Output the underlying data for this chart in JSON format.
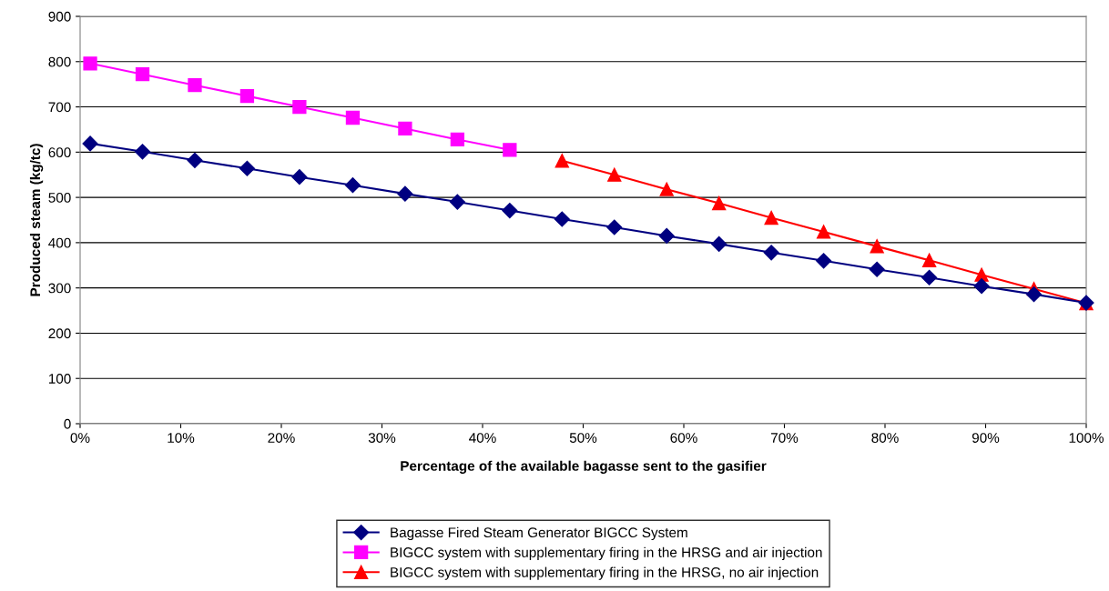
{
  "chart_data": {
    "type": "line",
    "xlabel": "Percentage of the available bagasse sent to the gasifier",
    "ylabel": "Produced steam (kg/tc)",
    "xlim": [
      0,
      100
    ],
    "xticks": [
      {
        "value": 0,
        "label": "0%"
      },
      {
        "value": 10,
        "label": "10%"
      },
      {
        "value": 20,
        "label": "20%"
      },
      {
        "value": 30,
        "label": "30%"
      },
      {
        "value": 40,
        "label": "40%"
      },
      {
        "value": 50,
        "label": "50%"
      },
      {
        "value": 60,
        "label": "60%"
      },
      {
        "value": 70,
        "label": "70%"
      },
      {
        "value": 80,
        "label": "80%"
      },
      {
        "value": 90,
        "label": "90%"
      },
      {
        "value": 100,
        "label": "100%"
      }
    ],
    "ylim": [
      0,
      900
    ],
    "yticks": [
      0,
      100,
      200,
      300,
      400,
      500,
      600,
      700,
      800,
      900
    ],
    "grid": "y",
    "legend": "bottom",
    "x": [
      1.0,
      6.2,
      11.4,
      16.6,
      21.8,
      27.1,
      32.3,
      37.5,
      42.7,
      47.9,
      53.1,
      58.3,
      63.5,
      68.7,
      73.9,
      79.2,
      84.4,
      89.6,
      94.8,
      100
    ],
    "series": [
      {
        "name": "Bagasse Fired Steam Generator BIGCC System",
        "color": "#000080",
        "marker": "diamond",
        "values": [
          619,
          601,
          582,
          564,
          545,
          527,
          508,
          490,
          471,
          452,
          434,
          415,
          397,
          378,
          360,
          341,
          323,
          304,
          286,
          267
        ]
      },
      {
        "name": "BIGCC system with supplementary firing in the HRSG and air injection",
        "color": "#ff00ff",
        "marker": "square",
        "values": [
          796,
          772,
          748,
          724,
          700,
          676,
          652,
          628,
          605,
          null,
          null,
          null,
          null,
          null,
          null,
          null,
          null,
          null,
          null,
          null
        ]
      },
      {
        "name": "BIGCC system with supplementary firing in the HRSG, no air injection",
        "color": "#ff0000",
        "marker": "triangle",
        "values": [
          null,
          null,
          null,
          null,
          null,
          null,
          null,
          null,
          null,
          581,
          550,
          518,
          487,
          455,
          424,
          392,
          361,
          329,
          298,
          266
        ]
      }
    ]
  }
}
